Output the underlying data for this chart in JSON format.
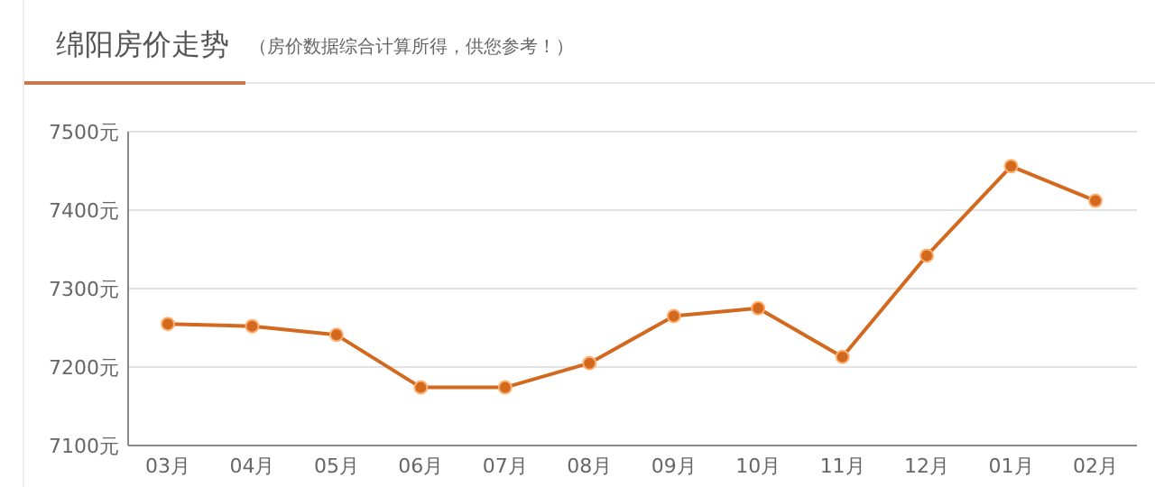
{
  "chart_data": {
    "type": "line",
    "title": "绵阳房价走势",
    "subtitle": "（房价数据综合计算所得，供您参考！）",
    "categories": [
      "03月",
      "04月",
      "05月",
      "06月",
      "07月",
      "08月",
      "09月",
      "10月",
      "11月",
      "12月",
      "01月",
      "02月"
    ],
    "series": [
      {
        "color": "#d2691e",
        "values": [
          7255,
          7252,
          7241,
          7174,
          7174,
          7205,
          7265,
          7275,
          7213,
          7342,
          7456,
          7412
        ]
      }
    ],
    "ylim": [
      7100,
      7500
    ],
    "yticks": [
      {
        "value": 7100,
        "label": "7100元"
      },
      {
        "value": 7200,
        "label": "7200元"
      },
      {
        "value": 7300,
        "label": "7300元"
      },
      {
        "value": 7400,
        "label": "7400元"
      },
      {
        "value": 7500,
        "label": "7500元"
      }
    ],
    "grid": "y",
    "marker": "circle",
    "line_style": "solid"
  }
}
